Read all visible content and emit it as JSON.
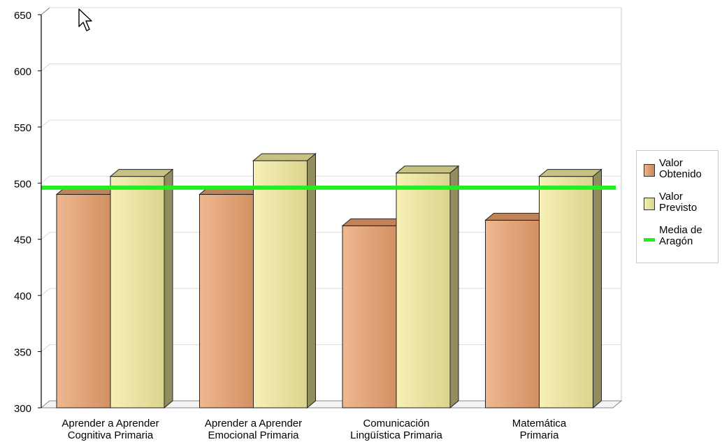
{
  "chart_data": {
    "type": "bar",
    "categories": [
      [
        "Aprender a Aprender",
        "Cognitiva Primaria"
      ],
      [
        "Aprender a Aprender",
        "Emocional Primaria"
      ],
      [
        "Comunicación",
        "Lingüística Primaria"
      ],
      [
        "Matemática",
        "Primaria"
      ]
    ],
    "series": [
      {
        "name": "Valor Obtenido",
        "values": [
          490,
          490,
          462,
          467
        ],
        "color": "#e9a06c"
      },
      {
        "name": "Valor Previsto",
        "values": [
          506,
          520,
          509,
          506
        ],
        "color": "#f3eb9e"
      }
    ],
    "reference_line": {
      "name": "Media de Aragón",
      "value": 496,
      "color": "#22ee22"
    },
    "ylim": [
      300,
      650
    ],
    "yticks": [
      300,
      350,
      400,
      450,
      500,
      550,
      600,
      650
    ],
    "grid": true,
    "legend_position": "right"
  },
  "legend": {
    "items": [
      {
        "label_lines": [
          "Valor",
          "Obtenido"
        ]
      },
      {
        "label_lines": [
          "Valor",
          "Previsto"
        ]
      },
      {
        "label_lines": [
          "Media de",
          "Aragón"
        ]
      }
    ]
  },
  "cursor": {
    "icon": "mouse-pointer-icon"
  }
}
